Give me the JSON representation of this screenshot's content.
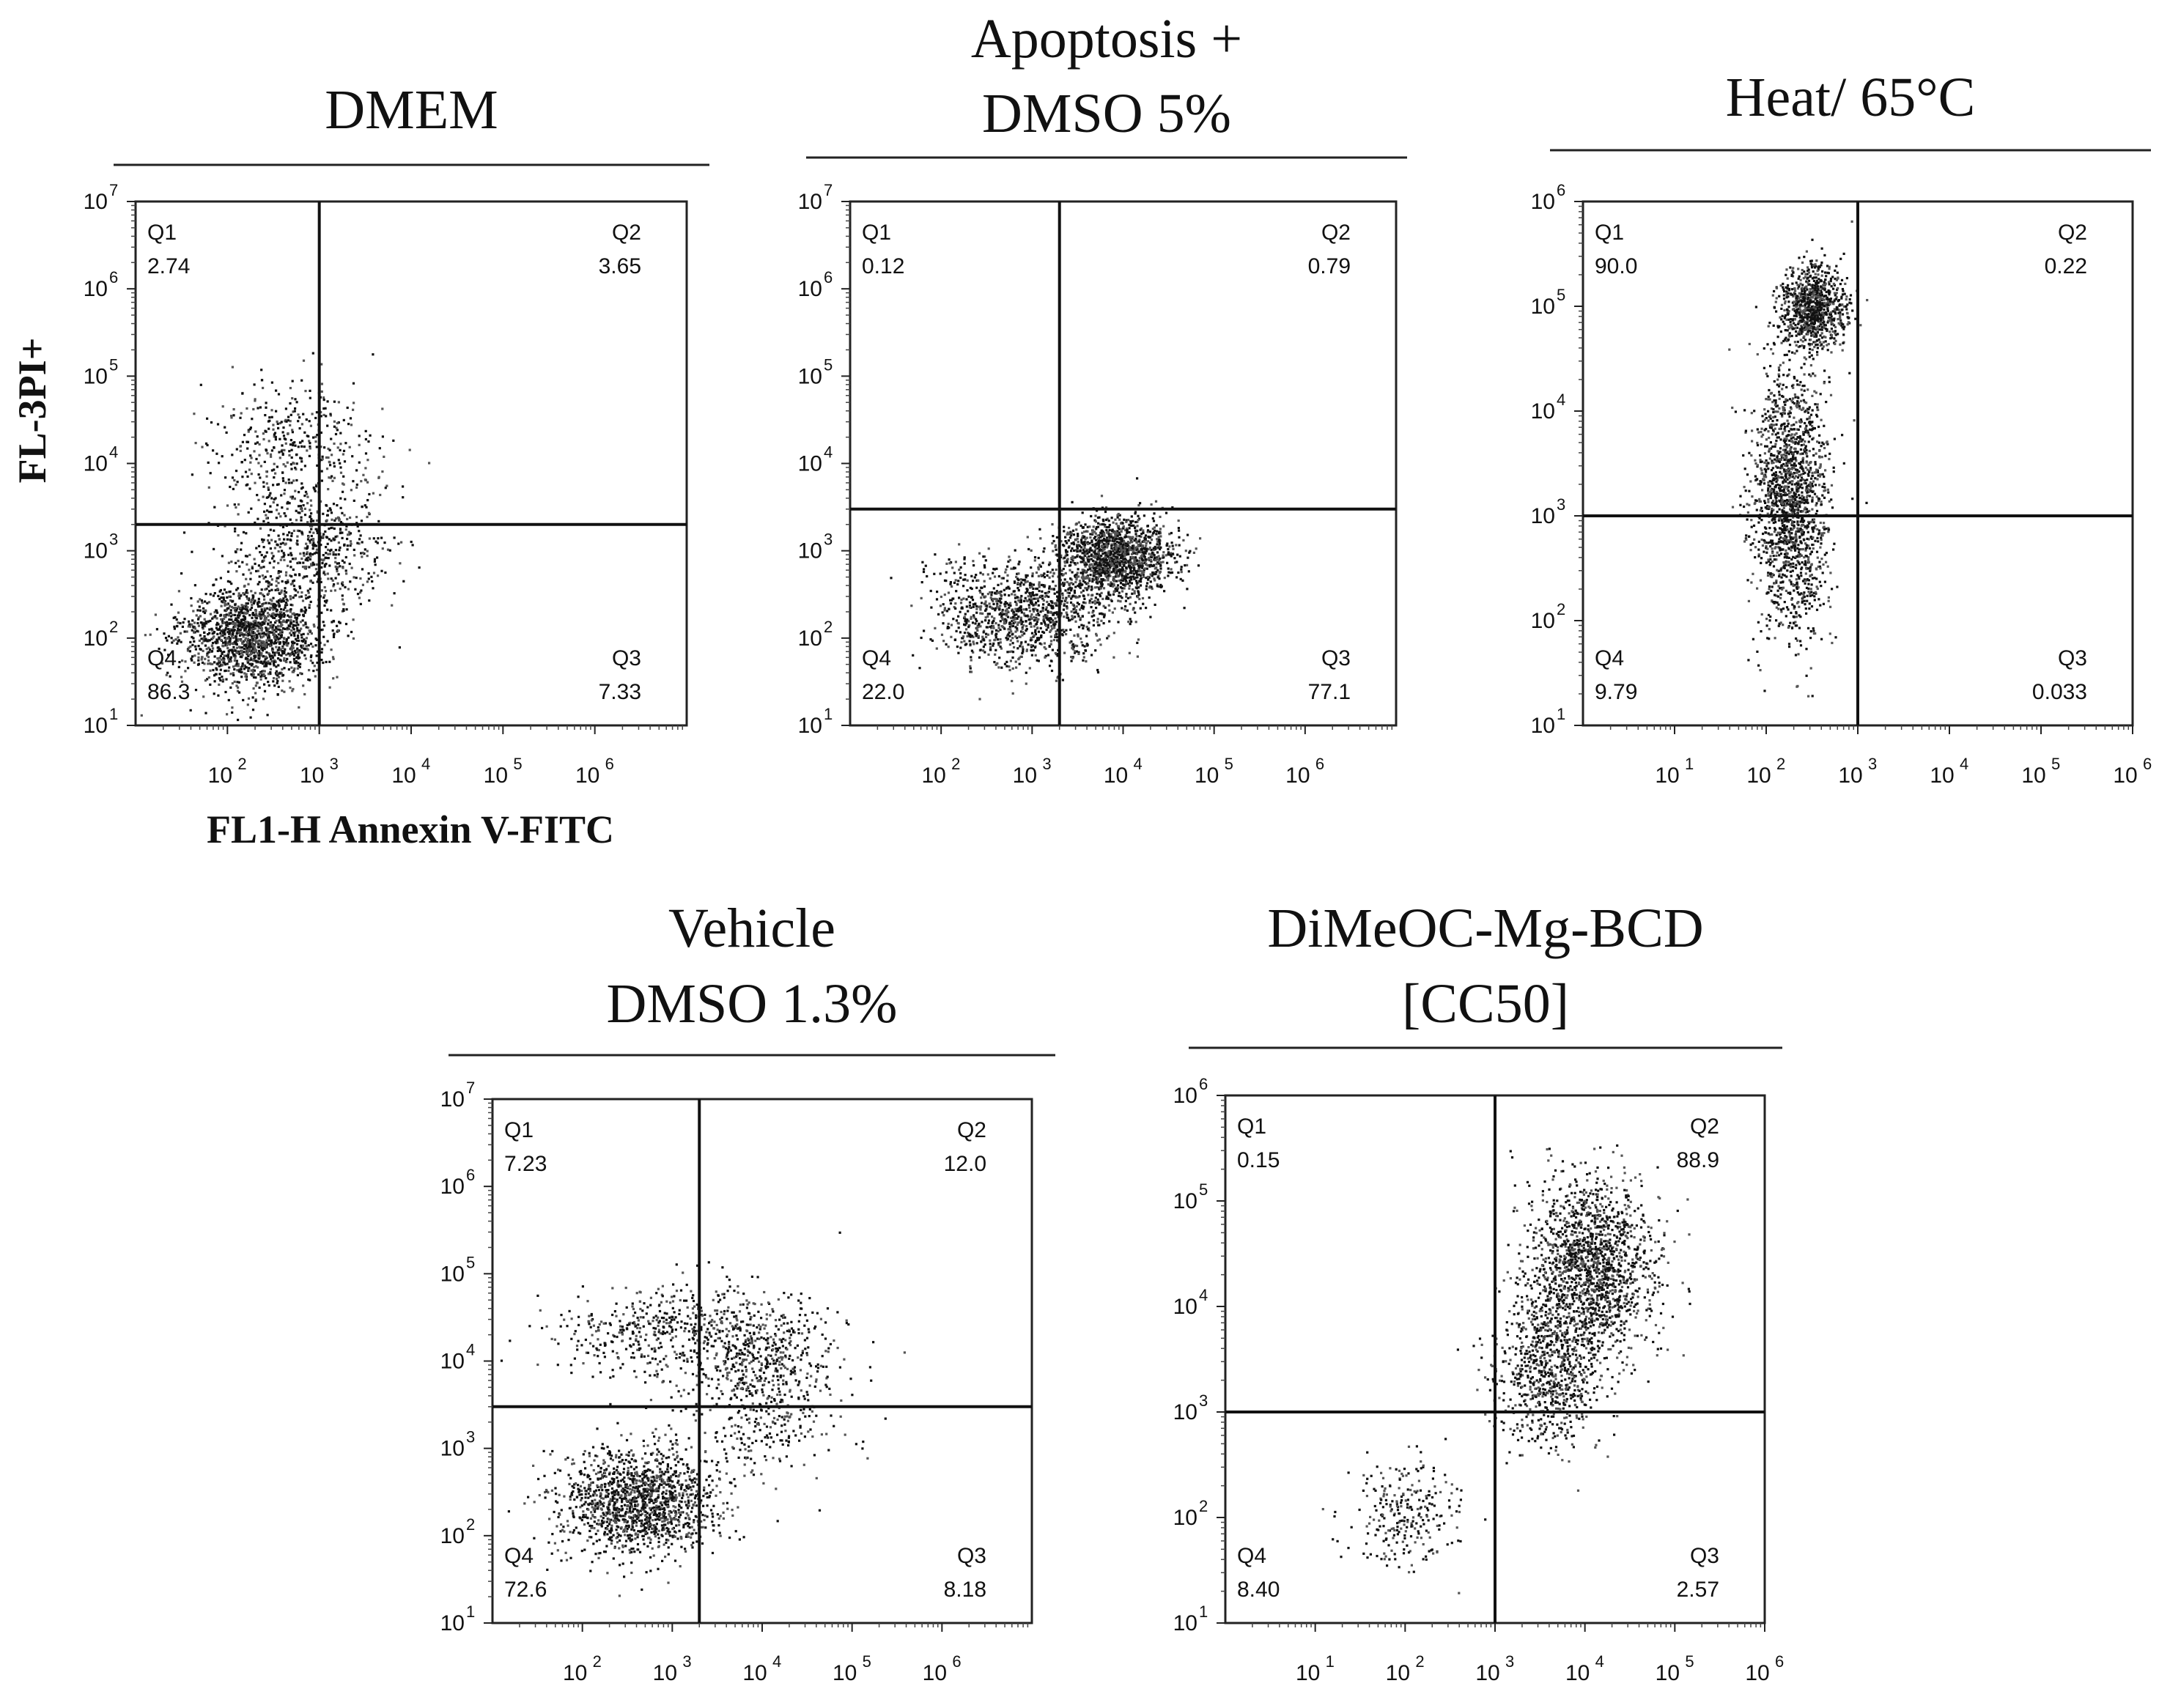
{
  "axis_titles": {
    "x": "FL1-H Annexin V-FITC",
    "y": "FL-3PI+"
  },
  "chart_data": [
    {
      "type": "scatter",
      "title": [
        "DMEM"
      ],
      "xlog": [
        1,
        7
      ],
      "ylog": [
        1,
        7
      ],
      "x_ticks": [
        2,
        3,
        4,
        5,
        6
      ],
      "y_ticks": [
        1,
        2,
        3,
        4,
        5,
        6,
        7
      ],
      "gate": {
        "x": 1000,
        "y": 2000
      },
      "quadrants": {
        "Q1": "2.74",
        "Q2": "3.65",
        "Q3": "7.33",
        "Q4": "86.3"
      },
      "populations": [
        {
          "weight": 0.62,
          "center": [
            2.25,
            2.05
          ],
          "spread": [
            0.38,
            0.3
          ]
        },
        {
          "weight": 0.2,
          "center": [
            2.9,
            3.0
          ],
          "spread": [
            0.4,
            0.35
          ]
        },
        {
          "weight": 0.18,
          "center": [
            2.7,
            4.1
          ],
          "spread": [
            0.45,
            0.45
          ]
        }
      ]
    },
    {
      "type": "scatter",
      "title": [
        "Apoptosis +",
        "DMSO 5%"
      ],
      "xlog": [
        1,
        7
      ],
      "ylog": [
        1,
        7
      ],
      "x_ticks": [
        2,
        3,
        4,
        5,
        6
      ],
      "y_ticks": [
        1,
        2,
        3,
        4,
        5,
        6,
        7
      ],
      "gate": {
        "x": 2000,
        "y": 3000
      },
      "quadrants": {
        "Q1": "0.12",
        "Q2": "0.79",
        "Q3": "77.1",
        "Q4": "22.0"
      },
      "populations": [
        {
          "weight": 0.55,
          "center": [
            3.9,
            2.95
          ],
          "spread": [
            0.32,
            0.22
          ]
        },
        {
          "weight": 0.45,
          "center": [
            2.9,
            2.3
          ],
          "spread": [
            0.5,
            0.3
          ]
        }
      ]
    },
    {
      "type": "scatter",
      "title": [
        "Heat/ 65°C"
      ],
      "xlog": [
        0,
        6
      ],
      "ylog": [
        1,
        6
      ],
      "x_ticks": [
        1,
        2,
        3,
        4,
        5,
        6
      ],
      "y_ticks": [
        1,
        2,
        3,
        4,
        5,
        6
      ],
      "gate": {
        "x": 1000,
        "y": 1000
      },
      "quadrants": {
        "Q1": "90.0",
        "Q2": "0.22",
        "Q3": "0.033",
        "Q4": "9.79"
      },
      "populations": [
        {
          "weight": 0.35,
          "center": [
            2.5,
            5.0
          ],
          "spread": [
            0.18,
            0.2
          ]
        },
        {
          "weight": 0.65,
          "center": [
            2.25,
            3.2
          ],
          "spread": [
            0.2,
            0.65
          ]
        }
      ]
    },
    {
      "type": "scatter",
      "title": [
        "Vehicle",
        "DMSO 1.3%"
      ],
      "xlog": [
        1,
        7
      ],
      "ylog": [
        1,
        7
      ],
      "x_ticks": [
        2,
        3,
        4,
        5,
        6
      ],
      "y_ticks": [
        1,
        2,
        3,
        4,
        5,
        6,
        7
      ],
      "gate": {
        "x": 2000,
        "y": 3000
      },
      "quadrants": {
        "Q1": "7.23",
        "Q2": "12.0",
        "Q3": "8.18",
        "Q4": "72.6"
      },
      "populations": [
        {
          "weight": 0.55,
          "center": [
            2.6,
            2.4
          ],
          "spread": [
            0.45,
            0.3
          ]
        },
        {
          "weight": 0.2,
          "center": [
            3.0,
            4.35
          ],
          "spread": [
            0.7,
            0.25
          ]
        },
        {
          "weight": 0.25,
          "center": [
            4.0,
            3.8
          ],
          "spread": [
            0.45,
            0.5
          ]
        }
      ]
    },
    {
      "type": "scatter",
      "title": [
        "DiMeOC-Mg-BCD",
        "[CC50]"
      ],
      "xlog": [
        0,
        6
      ],
      "ylog": [
        1,
        6
      ],
      "x_ticks": [
        1,
        2,
        3,
        4,
        5,
        6
      ],
      "y_ticks": [
        1,
        2,
        3,
        4,
        5,
        6
      ],
      "gate": {
        "x": 1000,
        "y": 1000
      },
      "quadrants": {
        "Q1": "0.15",
        "Q2": "88.9",
        "Q3": "2.57",
        "Q4": "8.40"
      },
      "populations": [
        {
          "weight": 0.6,
          "center": [
            4.05,
            4.4
          ],
          "spread": [
            0.35,
            0.4
          ]
        },
        {
          "weight": 0.3,
          "center": [
            3.6,
            3.4
          ],
          "spread": [
            0.3,
            0.35
          ]
        },
        {
          "weight": 0.1,
          "center": [
            2.0,
            2.05
          ],
          "spread": [
            0.3,
            0.28
          ]
        }
      ]
    }
  ]
}
